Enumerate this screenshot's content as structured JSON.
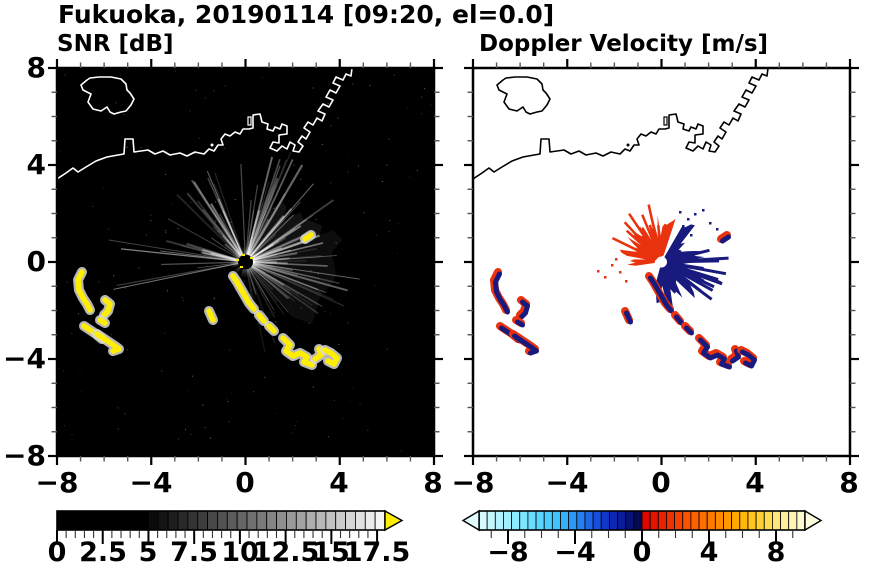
{
  "title": "Fukuoka, 20190114 [09:20, el=0.0]",
  "panels": [
    {
      "label": "SNR [dB]",
      "x_tick_labels": [
        "−8",
        "−4",
        "0",
        "4",
        "8"
      ],
      "y_tick_labels": [
        "8",
        "4",
        "0",
        "−4",
        "−8"
      ]
    },
    {
      "label": "Doppler Velocity [m/s]",
      "x_tick_labels": [
        "−8",
        "−4",
        "0",
        "4",
        "8"
      ]
    }
  ],
  "colorbars": {
    "snr": {
      "tick_labels": [
        "0",
        "2.5",
        "5",
        "7.5",
        "10",
        "12.5",
        "15",
        "17.5"
      ]
    },
    "doppler": {
      "tick_labels": [
        "−8",
        "−4",
        "0",
        "4",
        "8"
      ]
    }
  },
  "colors": {
    "snr_background": "#000000",
    "snr_coast": "#ffffff",
    "snr_high_yellow": "#ffee00",
    "doppler_background": "#ffffff",
    "doppler_coast": "#000000",
    "doppler_positive_red": "#e8330e",
    "doppler_negative_navy": "#181a7e",
    "axis_black": "#000000"
  },
  "chart_data": [
    {
      "type": "heatmap",
      "title": "SNR [dB]",
      "xlim": [
        -8,
        8
      ],
      "ylim": [
        -8,
        8
      ],
      "x_ticks": [
        -8,
        -4,
        0,
        4,
        8
      ],
      "y_ticks": [
        8,
        4,
        0,
        -4,
        -8
      ],
      "minor_tick_step": 1,
      "colorbar": {
        "range": [
          0,
          17.5
        ],
        "ticks": [
          0,
          2.5,
          5,
          7.5,
          10,
          12.5,
          15,
          17.5
        ],
        "scale": "black below 5 dB, grayscale ramp to white near 17.5 dB, yellow overflow arrow for higher values"
      },
      "background": "black (no signal over sea/land)",
      "features": [
        "scanning Doppler lidar located at map origin (0,0)",
        "coastline of Hakata Bay drawn in white across the upper half of the map",
        "island outline near (-7, 6.5)",
        "angular harbor piers and reclaimed land between (1,5) and (4,7)",
        "fan of moderate-SNR radial beams north, east and west of the instrument",
        "arc-shaped high-SNR band (yellow, above colorbar max) running from about (-0.5,-0.5) to (4,-4.5)",
        "isolated high-SNR patches between about (-7,-1) and (-5,-4)"
      ]
    },
    {
      "type": "heatmap",
      "title": "Doppler Velocity [m/s]",
      "xlim": [
        -8,
        8
      ],
      "ylim": [
        -8,
        8
      ],
      "x_ticks": [
        -8,
        -4,
        0,
        4,
        8
      ],
      "y_ticks": [
        8,
        4,
        0,
        -4,
        -8
      ],
      "minor_tick_step": 1,
      "colorbar": {
        "range": [
          -10,
          10
        ],
        "ticks": [
          -8,
          -4,
          0,
          4,
          8
        ],
        "scale": "pale cyan to blue to dark navy for negative velocities; red to orange to pale yellow for positive velocities; overflow arrows at both ends"
      },
      "background": "white (no velocity estimate)",
      "features": [
        "same coastline drawn in black on white background",
        "white no-data disc at the instrument location (0,0)",
        "positive Doppler velocities (red) in a lobe west-northwest of the origin",
        "negative Doppler velocities (dark navy) in a lobe east-southeast of the origin",
        "mixed red/navy velocities along the echo band toward (4,-4.5)",
        "mixed red/navy patches between about (-7,-1) and (-5,-4)"
      ]
    }
  ]
}
